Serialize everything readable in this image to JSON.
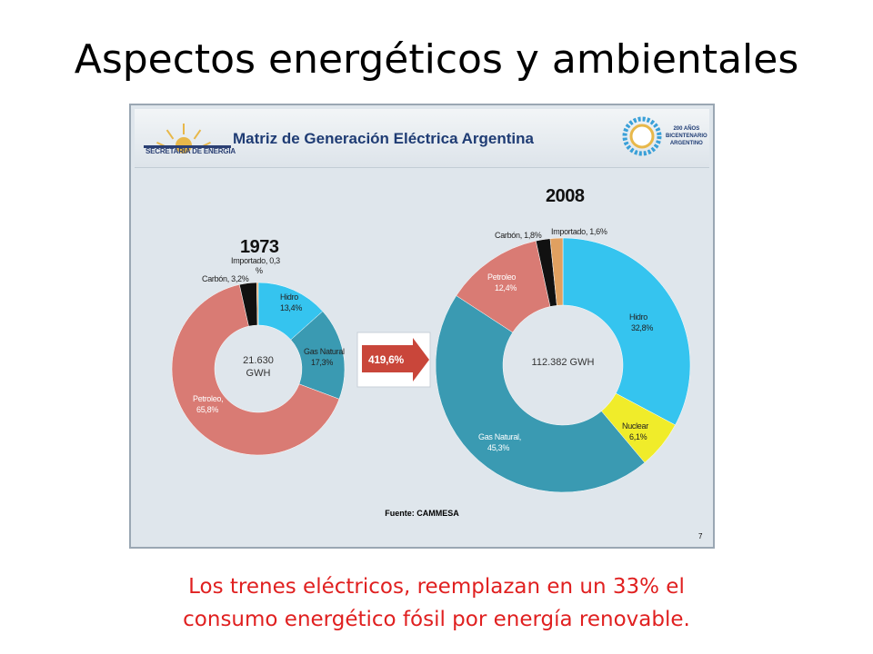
{
  "slide": {
    "title": "Aspectos energéticos y ambientales",
    "caption_line1": "Los trenes eléctricos, reemplazan en un 33% el",
    "caption_line2": "consumo energético fósil por energía renovable."
  },
  "panel": {
    "header_title": "Matriz de Generación Eléctrica Argentina",
    "left_logo_text": "SECRETARIA DE ENERGIA",
    "right_logo_line1": "200 AÑOS",
    "right_logo_line2": "BICENTENARIO",
    "right_logo_line3": "ARGENTINO",
    "arrow_label": "419,6%",
    "source": "Fuente: CAMMESA",
    "page_number": "7"
  },
  "colors": {
    "hidro": "#35c4ef",
    "gas_natural": "#3a9ab2",
    "petroleo": "#d97b74",
    "carbon": "#111111",
    "importado": "#e0a060",
    "nuclear": "#f0ec2a",
    "arrow": "#c9463a"
  },
  "chart_data": [
    {
      "type": "pie",
      "title": "1973",
      "center_label_line1": "21.630",
      "center_label_line2": "GWH",
      "slices": [
        {
          "key": "hidro",
          "label": "Hidro",
          "value_text": "13,4%",
          "value": 13.4
        },
        {
          "key": "gas_natural",
          "label": "Gas Natural",
          "value_text": "17,3%",
          "value": 17.3
        },
        {
          "key": "petroleo",
          "label": "Petroleo,",
          "value_text": "65,8%",
          "value": 65.8
        },
        {
          "key": "carbon",
          "label": "Carbón, 3,2%",
          "value_text": "",
          "value": 3.2
        },
        {
          "key": "importado",
          "label": "Importado, 0,3",
          "value_text": "%",
          "value": 0.3
        }
      ]
    },
    {
      "type": "pie",
      "title": "2008",
      "center_label_line1": "112.382 GWH",
      "center_label_line2": "",
      "slices": [
        {
          "key": "hidro",
          "label": "Hidro",
          "value_text": "32,8%",
          "value": 32.8
        },
        {
          "key": "nuclear",
          "label": "Nuclear",
          "value_text": "6,1%",
          "value": 6.1
        },
        {
          "key": "gas_natural",
          "label": "Gas Natural,",
          "value_text": "45,3%",
          "value": 45.3
        },
        {
          "key": "petroleo",
          "label": "Petroleo",
          "value_text": "12,4%",
          "value": 12.4
        },
        {
          "key": "carbon",
          "label": "Carbón, 1,8%",
          "value_text": "",
          "value": 1.8
        },
        {
          "key": "importado",
          "label": "Importado, 1,6%",
          "value_text": "",
          "value": 1.6
        }
      ]
    }
  ]
}
